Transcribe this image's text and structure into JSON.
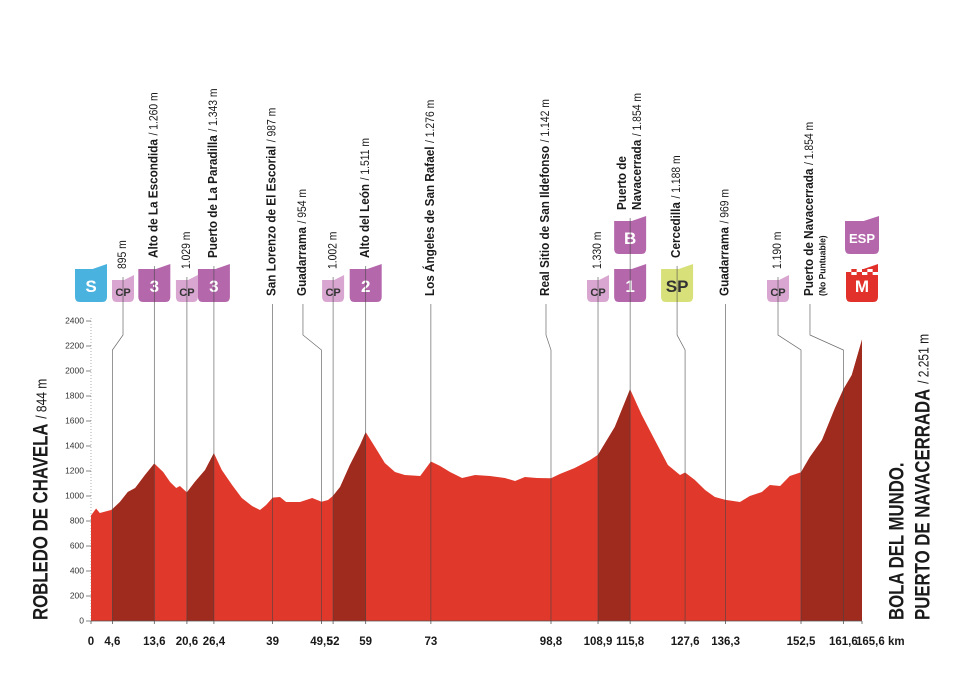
{
  "chart_data": {
    "type": "area",
    "color": "#e0392b",
    "climb_color": "#9f2b1f",
    "x": [
      0,
      1.1,
      1.9,
      4.3,
      4.6,
      6.2,
      7.9,
      9.5,
      11.6,
      13.6,
      15.5,
      17.0,
      18.3,
      19.1,
      20.6,
      22.3,
      24.5,
      26.4,
      28.1,
      30.3,
      32.4,
      34.6,
      36.3,
      37.6,
      39,
      40.6,
      41.9,
      44.9,
      47.5,
      49.5,
      50.9,
      52,
      53.5,
      55.6,
      57.8,
      59,
      61.0,
      63.1,
      65.3,
      67.4,
      70.7,
      73,
      75.0,
      77.1,
      79.7,
      82.5,
      85.7,
      88.9,
      91.1,
      93.2,
      95.8,
      98.8,
      100.7,
      103.9,
      107.2,
      108.9,
      112.5,
      115.8,
      118.3,
      121.1,
      123.9,
      126.5,
      127.6,
      129.7,
      131.9,
      134.0,
      136.3,
      139.4,
      141.5,
      144.1,
      145.8,
      148.0,
      150.1,
      152.5,
      154.4,
      157.0,
      159.8,
      161.6,
      163.4,
      165.6
    ],
    "values": [
      844,
      900,
      864,
      888,
      895,
      952,
      1032,
      1064,
      1168,
      1260,
      1192,
      1112,
      1064,
      1080,
      1029,
      1112,
      1208,
      1343,
      1208,
      1088,
      984,
      920,
      888,
      928,
      987,
      992,
      952,
      952,
      984,
      954,
      968,
      1002,
      1072,
      1248,
      1408,
      1511,
      1392,
      1264,
      1192,
      1168,
      1160,
      1276,
      1240,
      1192,
      1144,
      1168,
      1160,
      1144,
      1120,
      1152,
      1144,
      1142,
      1176,
      1224,
      1288,
      1330,
      1552,
      1854,
      1648,
      1448,
      1248,
      1168,
      1188,
      1128,
      1048,
      992,
      969,
      952,
      1000,
      1032,
      1088,
      1080,
      1160,
      1190,
      1312,
      1448,
      1704,
      1854,
      1968,
      2251
    ],
    "climbs": [
      [
        4.6,
        13.6
      ],
      [
        20.6,
        26.4
      ],
      [
        52,
        59
      ],
      [
        108.9,
        115.8
      ],
      [
        152.5,
        165.6
      ]
    ],
    "xlim": [
      0,
      165.6
    ],
    "ylim": [
      0,
      2400
    ],
    "yticks": [
      0,
      200,
      400,
      600,
      800,
      1000,
      1200,
      1400,
      1600,
      1800,
      2000,
      2200,
      2400
    ],
    "xticks": [
      0,
      {
        "value": 4.6,
        "label": "4,6"
      },
      {
        "value": 13.6,
        "label": "13,6"
      },
      {
        "value": 20.6,
        "label": "20,6"
      },
      {
        "value": 26.4,
        "label": "26,4"
      },
      39,
      {
        "value": 49.5,
        "label": "49,5"
      },
      52,
      59,
      73,
      {
        "value": 98.8,
        "label": "98,8"
      },
      {
        "value": 108.9,
        "label": "108,9"
      },
      {
        "value": 115.8,
        "label": "115,8"
      },
      {
        "value": 127.6,
        "label": "127,6"
      },
      {
        "value": 136.3,
        "label": "136,3"
      },
      {
        "value": 152.5,
        "label": "152,5"
      },
      {
        "value": 161.6,
        "label": "161,6"
      },
      {
        "value": 165.6,
        "label": "165,6 km"
      }
    ],
    "start": {
      "name": "ROBLEDO DE CHAVELA",
      "detail": "/ 844 m"
    },
    "finish": {
      "name": [
        "BOLA DEL MUNDO.",
        "PUERTO DE NAVACERRADA"
      ],
      "detail": "/ 2.251 m"
    },
    "annotations": [
      {
        "x": 0,
        "badges": [
          {
            "text": "S",
            "kind": "start"
          }
        ]
      },
      {
        "x": 4.6,
        "detail": "895 m",
        "badges": [
          {
            "text": "CP",
            "kind": "cp"
          }
        ]
      },
      {
        "x": 13.6,
        "name": "Alto de La Escondida",
        "detail": "/ 1.260 m",
        "badges": [
          {
            "text": "3",
            "kind": "cat"
          }
        ]
      },
      {
        "x": 20.6,
        "detail": "1.029 m",
        "badges": [
          {
            "text": "CP",
            "kind": "cp"
          }
        ]
      },
      {
        "x": 26.4,
        "name": "Puerto de La Paradilla",
        "detail": "/ 1.343 m",
        "badges": [
          {
            "text": "3",
            "kind": "cat"
          }
        ]
      },
      {
        "x": 39,
        "name": "San Lorenzo de El Escorial",
        "detail": "/ 987 m"
      },
      {
        "x": 49.5,
        "name": "Guadarrama",
        "detail": "/ 954 m"
      },
      {
        "x": 52,
        "detail": "1.002 m",
        "badges": [
          {
            "text": "CP",
            "kind": "cp"
          }
        ]
      },
      {
        "x": 59,
        "name": "Alto del León",
        "detail": "/ 1.511 m",
        "badges": [
          {
            "text": "2",
            "kind": "cat"
          }
        ]
      },
      {
        "x": 73,
        "name": "Los Ángeles de San Rafael",
        "detail": "/ 1.276 m"
      },
      {
        "x": 98.8,
        "name": "Real Sitio de San Ildefonso",
        "detail": "/ 1.142 m"
      },
      {
        "x": 108.9,
        "detail": "1.330 m",
        "badges": [
          {
            "text": "CP",
            "kind": "cp"
          }
        ]
      },
      {
        "x": 115.8,
        "name": [
          "Puerto de",
          "Navacerrada"
        ],
        "detail": "/ 1.854 m",
        "badges": [
          {
            "text": "1",
            "kind": "cat"
          },
          {
            "text": "B",
            "kind": "cat"
          }
        ]
      },
      {
        "x": 127.6,
        "name": "Cercedilla",
        "detail": "/ 1.188 m",
        "badges": [
          {
            "text": "SP",
            "kind": "sprint"
          }
        ]
      },
      {
        "x": 136.3,
        "name": "Guadarrama",
        "detail": "/ 969 m"
      },
      {
        "x": 152.5,
        "detail": "1.190 m",
        "badges": [
          {
            "text": "CP",
            "kind": "cp"
          }
        ]
      },
      {
        "x": 161.6,
        "name": "Puerto de Navacerrada",
        "detail": "/ 1.854 m",
        "note": "(No Puntuable)"
      },
      {
        "x": 165.6,
        "badges": [
          {
            "text": "M",
            "kind": "finish"
          },
          {
            "text": "ESP",
            "kind": "cat"
          }
        ]
      }
    ]
  }
}
